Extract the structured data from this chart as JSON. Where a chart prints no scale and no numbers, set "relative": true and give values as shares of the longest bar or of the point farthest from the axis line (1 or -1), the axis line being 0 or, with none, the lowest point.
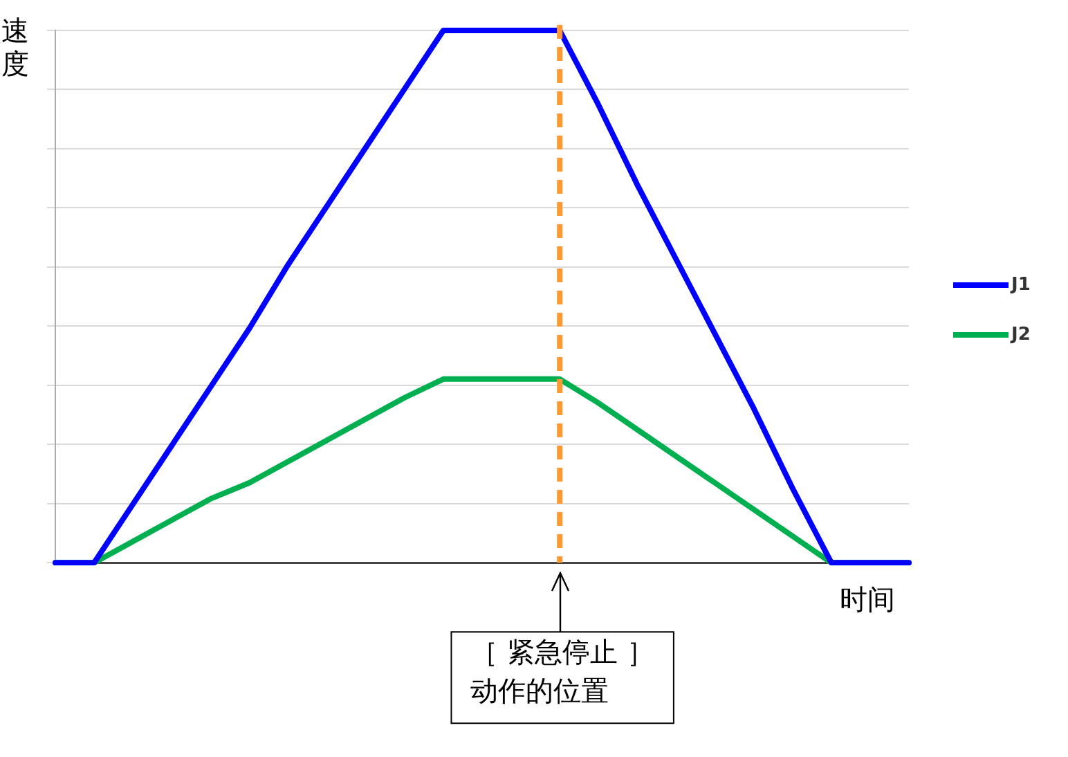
{
  "chart_data": {
    "type": "line",
    "xlabel": "时间",
    "ylabel": "速度",
    "relative": true,
    "grid": "y",
    "legend": "right",
    "marker": "none",
    "line_style": "solid",
    "categories": [
      null,
      null,
      null,
      null,
      null,
      null,
      null,
      null,
      null,
      null,
      null,
      null,
      null,
      null,
      null,
      null,
      null,
      null,
      null,
      null,
      null,
      null,
      null
    ],
    "series": [
      {
        "name": "J1",
        "color": "#0000ff",
        "values": [
          0,
          0,
          0.11,
          0.22,
          0.33,
          0.44,
          0.56,
          0.67,
          0.78,
          0.89,
          1,
          1,
          1,
          1,
          0.86,
          0.71,
          0.57,
          0.43,
          0.29,
          0.14,
          0,
          0,
          0
        ]
      },
      {
        "name": "J2",
        "color": "#00b050",
        "values": [
          0,
          0,
          0.04,
          0.08,
          0.12,
          0.15,
          0.19,
          0.23,
          0.27,
          0.31,
          0.345,
          0.345,
          0.345,
          0.345,
          0.3,
          0.25,
          0.2,
          0.15,
          0.1,
          0.05,
          0,
          0,
          0
        ]
      }
    ],
    "annotations": [
      "［ 紧急停止 ］动作的位置"
    ]
  }
}
